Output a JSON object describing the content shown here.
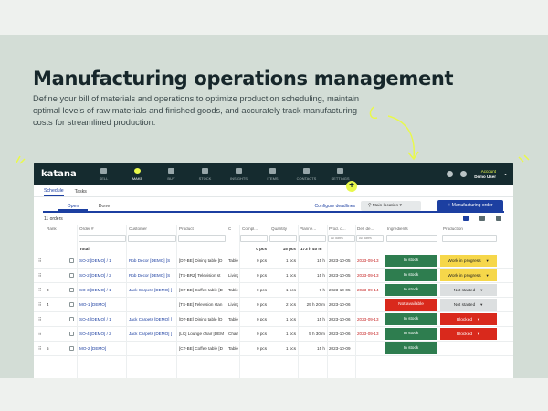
{
  "hero": {
    "title": "Manufacturing operations management",
    "subtitle": "Define your bill of materials and operations to optimize production scheduling, maintain optimal levels of raw materials and finished goods, and accurately track manufacturing costs for streamlined production."
  },
  "app": {
    "logo": "katana",
    "nav": [
      "SELL",
      "MAKE",
      "BUY",
      "STOCK",
      "INSIGHTS",
      "ITEMS",
      "CONTACTS",
      "SETTINGS"
    ],
    "active_nav": "MAKE",
    "account": {
      "label": "Account",
      "user": "Demo User"
    },
    "fab": "+",
    "subtabs": [
      "Schedule",
      "Tasks"
    ],
    "open_tab": "Open",
    "done_tab": "Done",
    "configure_deadlines": "Configure deadlines",
    "location": "Main location",
    "new_order": "+ Manufacturing order",
    "count": "11 orders",
    "columns": [
      "Rank",
      "Order #",
      "Customer",
      "Product",
      "C",
      "Compl...",
      "Quantity",
      "Planne...",
      "Prod. d...",
      "Del. de...",
      "Ingredients",
      "Production"
    ],
    "filters": {
      "all_dates_1": "All dates",
      "all_dates_2": "All dates"
    },
    "totals": {
      "label": "Total:",
      "completed": "0 pcs",
      "quantity": "15 pcs",
      "planned": "173 h 40 m"
    },
    "rows": [
      {
        "rank": "",
        "order": "SO-2 [DEMO] / 1",
        "customer": "Rob Decor [DEMO] [S",
        "product": "[DT-BE] Dining table [D",
        "c": "Table",
        "completed": "0 pcs",
        "qty": "1 pcs",
        "planned": "15 h",
        "prod": "2023-10-05",
        "del": "2023-09-13",
        "ingredients": "In stock",
        "ing_color": "green",
        "production": "Work in progress",
        "prod_color": "yellow"
      },
      {
        "rank": "",
        "order": "SO-2 [DEMO] / 2",
        "customer": "Rob Decor [DEMO] [S",
        "product": "[TS-BRZ] Television st",
        "c": "Living",
        "completed": "0 pcs",
        "qty": "1 pcs",
        "planned": "15 h",
        "prod": "2023-10-05",
        "del": "2023-09-13",
        "ingredients": "In stock",
        "ing_color": "green",
        "production": "Work in progress",
        "prod_color": "yellow"
      },
      {
        "rank": "3",
        "order": "SO-3 [DEMO] / 1",
        "customer": "Jack Carpets [DEMO] [",
        "product": "[CT-BE] Coffee table [D",
        "c": "Table",
        "completed": "0 pcs",
        "qty": "1 pcs",
        "planned": "9 h",
        "prod": "2023-10-05",
        "del": "2023-09-14",
        "ingredients": "In stock",
        "ing_color": "green",
        "production": "Not started",
        "prod_color": "gray"
      },
      {
        "rank": "4",
        "order": "MO-1 [DEMO]",
        "customer": "",
        "product": "[TS-BE] Television stan",
        "c": "Living",
        "completed": "0 pcs",
        "qty": "2 pcs",
        "planned": "29 h 20 m",
        "prod": "2023-10-06",
        "del": "",
        "ingredients": "Not available",
        "ing_color": "red",
        "production": "Not started",
        "prod_color": "gray"
      },
      {
        "rank": "",
        "order": "SO-4 [DEMO] / 1",
        "customer": "Jack Carpets [DEMO] [",
        "product": "[DT-BE] Dining table [D",
        "c": "Table",
        "completed": "0 pcs",
        "qty": "1 pcs",
        "planned": "15 h",
        "prod": "2023-10-06",
        "del": "2023-09-13",
        "ingredients": "In stock",
        "ing_color": "green",
        "production": "Blocked",
        "prod_color": "red"
      },
      {
        "rank": "",
        "order": "SO-4 [DEMO] / 2",
        "customer": "Jack Carpets [DEMO] [",
        "product": "[LC] Lounge chair [DEM",
        "c": "Chair",
        "completed": "0 pcs",
        "qty": "1 pcs",
        "planned": "5 h 30 m",
        "prod": "2023-10-06",
        "del": "2023-09-13",
        "ingredients": "In stock",
        "ing_color": "green",
        "production": "Blocked",
        "prod_color": "red"
      },
      {
        "rank": "5",
        "order": "MO-2 [DEMO]",
        "customer": "",
        "product": "[CT-BE] Coffee table [D",
        "c": "Table",
        "completed": "0 pcs",
        "qty": "1 pcs",
        "planned": "15 h",
        "prod": "2023-10-09",
        "del": "",
        "ingredients": "In stock",
        "ing_color": "green",
        "production": "",
        "prod_color": "gray"
      }
    ]
  }
}
